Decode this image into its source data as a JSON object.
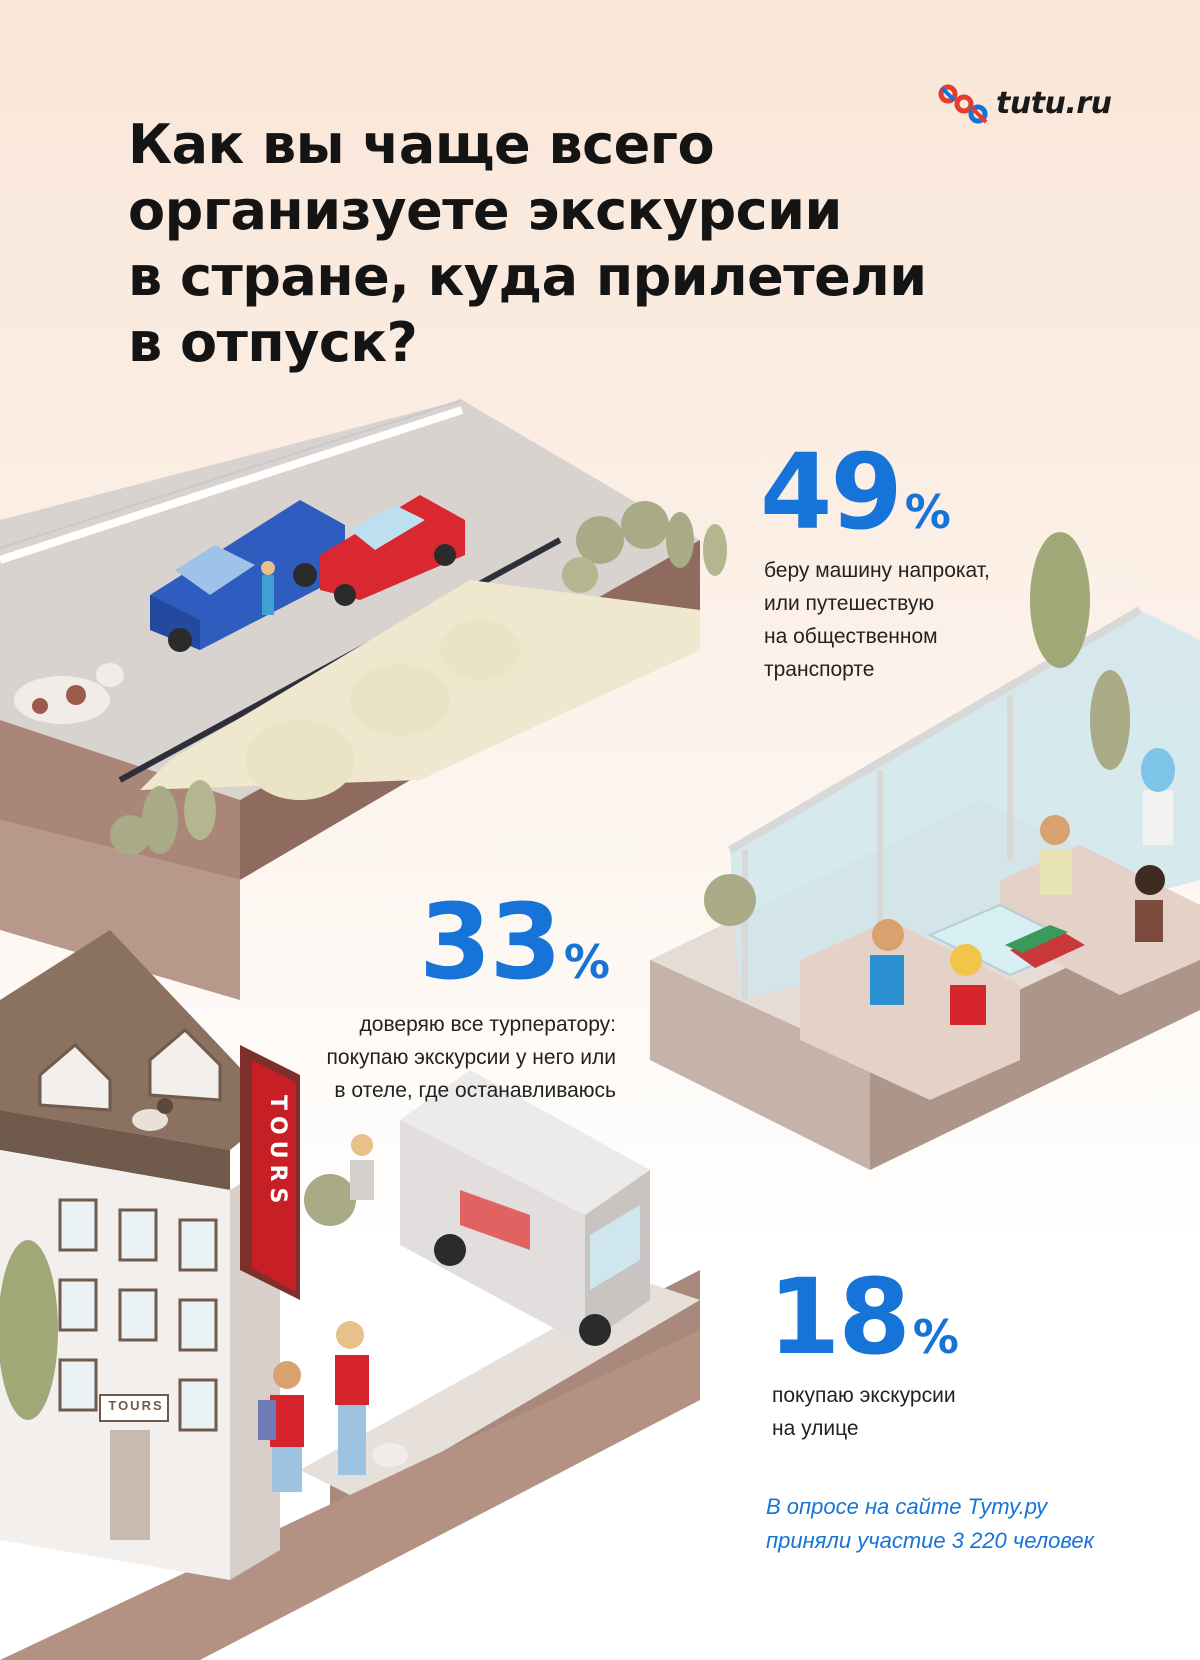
{
  "title_lines": [
    "Как вы чаще всего",
    "организуете экскурсии",
    "в стране, куда прилетели",
    "в отпуск?"
  ],
  "logo": {
    "text": "tutu.ru",
    "colors": [
      "#e63b2e",
      "#1673d8"
    ]
  },
  "stats": [
    {
      "value": "49",
      "unit": "%",
      "lines": [
        "беру машину напрокат,",
        "или путешествую",
        "на общественном",
        "транспорте"
      ]
    },
    {
      "value": "33",
      "unit": "%",
      "lines": [
        "доверяю все турператору:",
        "покупаю экскурсии у него или",
        "в отеле, где останавливаюсь"
      ]
    },
    {
      "value": "18",
      "unit": "%",
      "lines": [
        "покупаю экскурсии",
        "на улице"
      ]
    }
  ],
  "sign_text": "TOURS",
  "plaque_text": "TOURS",
  "footnote_lines": [
    "В опросе на сайте Туту.ру",
    "приняли участие 3 220 человек"
  ],
  "colors": {
    "accent": "#1673d8",
    "brand_red": "#e63b2e",
    "tours_sign": "#c62026"
  }
}
